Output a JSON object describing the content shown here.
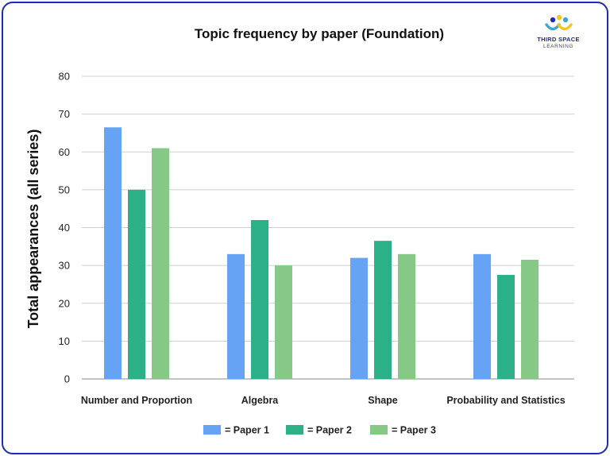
{
  "logo": {
    "name_line1": "THIRD SPACE",
    "name_line2": "LEARNING",
    "colors": [
      "#1f2bb0",
      "#f5c518",
      "#3ea6d6"
    ]
  },
  "chart_data": {
    "type": "bar",
    "title": "Topic frequency by paper (Foundation)",
    "xlabel": "",
    "ylabel": "Total appearances (all series)",
    "ylim": [
      0,
      80
    ],
    "yticks": [
      0,
      10,
      20,
      30,
      40,
      50,
      60,
      70,
      80
    ],
    "grid": true,
    "legend_position": "bottom",
    "categories": [
      "Number and Proportion",
      "Algebra",
      "Shape",
      "Probability and Statistics"
    ],
    "series": [
      {
        "name": "= Paper 1",
        "color": "#66a3f5",
        "values": [
          66.5,
          33,
          32,
          33
        ]
      },
      {
        "name": "= Paper 2",
        "color": "#2bb088",
        "values": [
          50,
          42,
          36.5,
          27.5
        ]
      },
      {
        "name": "= Paper 3",
        "color": "#86c986",
        "values": [
          61,
          30,
          33,
          31.5
        ]
      }
    ]
  }
}
